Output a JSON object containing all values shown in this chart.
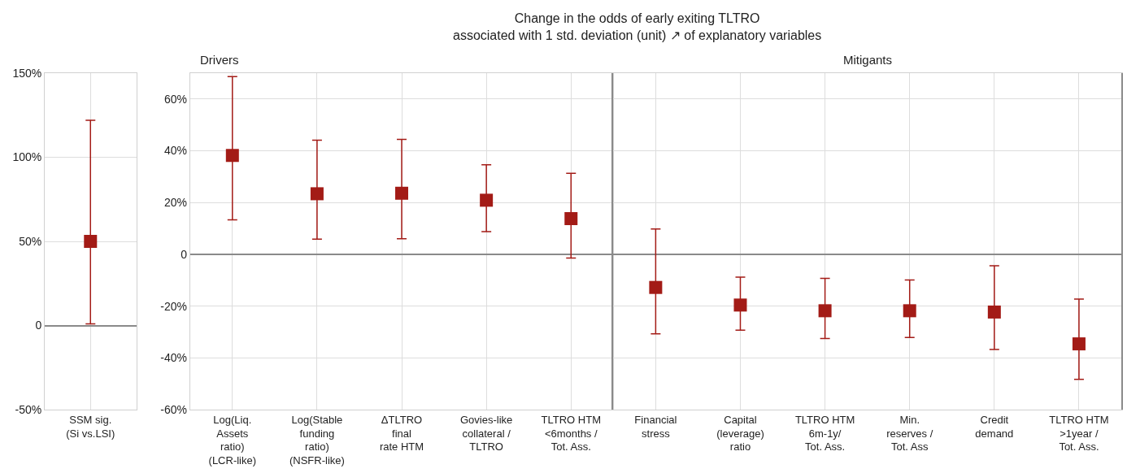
{
  "chart_data": [
    {
      "type": "scatter",
      "categories": [
        "SSM sig.\n(Si vs.LSI)"
      ],
      "series": [
        {
          "color": "#a31b16",
          "values": [
            50
          ],
          "errors": [
            [
              1,
              122
            ]
          ]
        }
      ],
      "ylim": [
        -50,
        150
      ],
      "yticks": [
        {
          "value": -50,
          "label": "-50%"
        },
        0,
        {
          "value": 50,
          "label": "50%"
        },
        {
          "value": 100,
          "label": "100%"
        },
        {
          "value": 150,
          "label": "150%"
        }
      ],
      "grid": true,
      "marker": "square"
    },
    {
      "type": "scatter",
      "title": "Change in the odds of early exiting TLTRO\nassociated with 1 std. deviation (unit) ↗ of explanatory variables",
      "categories": [
        "Log(Liq.\nAssets\nratio)\n(LCR-like)",
        "Log(Stable\nfunding\nratio)\n(NSFR-like)",
        "ΔTLTRO\nfinal\nrate HTM",
        "Govies-like\ncollateral /\nTLTRO",
        "TLTRO HTM\n<6months /\nTot. Ass."
      ],
      "series": [
        {
          "color": "#a31b16",
          "values": [
            38.2,
            23.4,
            23.6,
            20.9,
            13.8
          ],
          "errors": [
            [
              13.3,
              68.7
            ],
            [
              5.9,
              44.1
            ],
            [
              6.0,
              44.4
            ],
            [
              8.8,
              34.6
            ],
            [
              -1.4,
              31.3
            ]
          ]
        }
      ],
      "ylim": [
        -60,
        70
      ],
      "yticks": [
        {
          "value": -60,
          "label": "-60%"
        },
        {
          "value": -40,
          "label": "-40%"
        },
        {
          "value": -20,
          "label": "-20%"
        },
        0,
        {
          "value": 20,
          "label": "20%"
        },
        {
          "value": 40,
          "label": "40%"
        },
        {
          "value": 60,
          "label": "60%"
        }
      ],
      "annotations": [
        "Drivers"
      ],
      "grid": true,
      "marker": "square"
    },
    {
      "type": "scatter",
      "categories": [
        "Financial\nstress",
        "Capital\n(leverage)\nratio",
        "TLTRO HTM\n6m-1y/\nTot. Ass.",
        "Min.\nreserves /\nTot. Ass",
        "Credit\ndemand",
        "TLTRO HTM\n>1year /\nTot. Ass."
      ],
      "series": [
        {
          "color": "#a31b16",
          "values": [
            -12.8,
            -19.6,
            -21.8,
            -21.8,
            -22.3,
            -34.6
          ],
          "errors": [
            [
              -30.7,
              9.8
            ],
            [
              -29.3,
              -8.8
            ],
            [
              -32.5,
              -9.3
            ],
            [
              -32.1,
              -9.9
            ],
            [
              -36.8,
              -4.4
            ],
            [
              -48.3,
              -17.3
            ]
          ]
        }
      ],
      "ylim": [
        -60,
        70
      ],
      "yticks": [
        {
          "value": -60,
          "label": null
        },
        {
          "value": -40,
          "label": null
        },
        {
          "value": -20,
          "label": null
        },
        {
          "value": 0,
          "label": null
        },
        {
          "value": 20,
          "label": null
        },
        {
          "value": 40,
          "label": null
        },
        {
          "value": 60,
          "label": null
        }
      ],
      "tick_labels": "x",
      "annotations": [
        "Mitigants"
      ],
      "grid": true,
      "marker": "square"
    }
  ]
}
